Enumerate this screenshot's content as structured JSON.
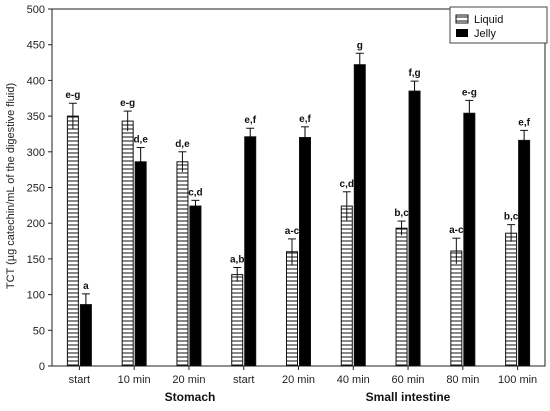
{
  "chart_data": {
    "type": "bar",
    "title": "",
    "xlabel": "",
    "ylabel": "TCT (µg catechin/mL of the digestive fluid)",
    "ylim": [
      0,
      500
    ],
    "yticks": [
      0,
      50,
      100,
      150,
      200,
      250,
      300,
      350,
      400,
      450,
      500
    ],
    "grid": false,
    "legend_position": "top-right",
    "categories": [
      "start",
      "10 min",
      "20 min",
      "start",
      "20 min",
      "40 min",
      "60 min",
      "80 min",
      "100 min"
    ],
    "groups": [
      {
        "label": "Stomach",
        "category_indices": [
          0,
          1,
          2
        ]
      },
      {
        "label": "Small intestine",
        "category_indices": [
          3,
          4,
          5,
          6,
          7,
          8
        ]
      }
    ],
    "series": [
      {
        "name": "Liquid",
        "pattern": "horizontal-hatch",
        "values": [
          350,
          343,
          286,
          128,
          160,
          224,
          193,
          161,
          186
        ],
        "errors": [
          18,
          14,
          14,
          10,
          18,
          20,
          10,
          18,
          12
        ],
        "labels": [
          "e-g",
          "e-g",
          "d,e",
          "a,b",
          "a-c",
          "c,d",
          "b,c",
          "a-c",
          "b,c"
        ]
      },
      {
        "name": "Jelly",
        "pattern": "solid",
        "values": [
          86,
          286,
          224,
          321,
          320,
          422,
          385,
          354,
          316
        ],
        "errors": [
          15,
          20,
          8,
          12,
          15,
          16,
          14,
          18,
          14
        ],
        "labels": [
          "a",
          "d,e",
          "c,d",
          "e,f",
          "e,f",
          "g",
          "f,g",
          "e-g",
          "e,f"
        ]
      }
    ]
  }
}
